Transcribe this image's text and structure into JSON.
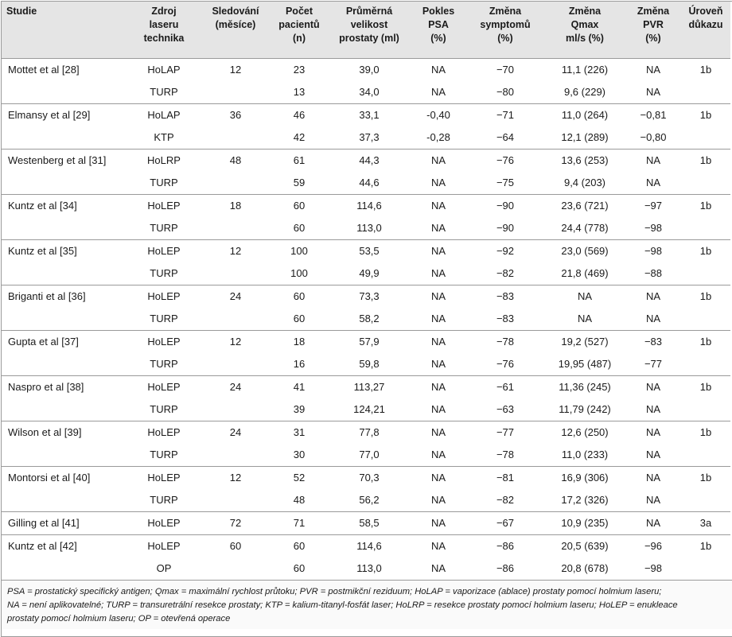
{
  "table": {
    "headers": [
      "Studie",
      "Zdroj\nlaseru\ntechnika",
      "Sledování\n(měsíce)",
      "Počet\npacientů\n(n)",
      "Průměrná\nvelikost\nprostaty (ml)",
      "Pokles\nPSA\n(%)",
      "Změna\nsymptomů\n(%)",
      "Změna\nQmax\nml/s (%)",
      "Změna\nPVR\n(%)",
      "Úroveň\ndůkazu"
    ],
    "groups": [
      {
        "studie": "Mottet et al [28]",
        "months": "12",
        "level": "1b",
        "rows": [
          {
            "tech": "HoLAP",
            "n": "23",
            "vol": "39,0",
            "psa": "NA",
            "sym": "−70",
            "qmax": "11,1 (226)",
            "pvr": "NA"
          },
          {
            "tech": "TURP",
            "n": "13",
            "vol": "34,0",
            "psa": "NA",
            "sym": "−80",
            "qmax": "9,6 (229)",
            "pvr": "NA"
          }
        ]
      },
      {
        "studie": "Elmansy et al [29]",
        "months": "36",
        "level": "1b",
        "rows": [
          {
            "tech": "HoLAP",
            "n": "46",
            "vol": "33,1",
            "psa": "-0,40",
            "sym": "−71",
            "qmax": "11,0 (264)",
            "pvr": "−0,81"
          },
          {
            "tech": "KTP",
            "n": "42",
            "vol": "37,3",
            "psa": "-0,28",
            "sym": "−64",
            "qmax": "12,1 (289)",
            "pvr": "−0,80"
          }
        ]
      },
      {
        "studie": "Westenberg et al [31]",
        "months": "48",
        "level": "1b",
        "rows": [
          {
            "tech": "HoLRP",
            "n": "61",
            "vol": "44,3",
            "psa": "NA",
            "sym": "−76",
            "qmax": "13,6 (253)",
            "pvr": "NA"
          },
          {
            "tech": "TURP",
            "n": "59",
            "vol": "44,6",
            "psa": "NA",
            "sym": "−75",
            "qmax": "9,4 (203)",
            "pvr": "NA"
          }
        ]
      },
      {
        "studie": "Kuntz et al [34]",
        "months": "18",
        "level": "1b",
        "rows": [
          {
            "tech": "HoLEP",
            "n": "60",
            "vol": "114,6",
            "psa": "NA",
            "sym": "−90",
            "qmax": "23,6 (721)",
            "pvr": "−97"
          },
          {
            "tech": "TURP",
            "n": "60",
            "vol": "113,0",
            "psa": "NA",
            "sym": "−90",
            "qmax": "24,4 (778)",
            "pvr": "−98"
          }
        ]
      },
      {
        "studie": "Kuntz et al [35]",
        "months": "12",
        "level": "1b",
        "rows": [
          {
            "tech": "HoLEP",
            "n": "100",
            "vol": "53,5",
            "psa": "NA",
            "sym": "−92",
            "qmax": "23,0 (569)",
            "pvr": "−98"
          },
          {
            "tech": "TURP",
            "n": "100",
            "vol": "49,9",
            "psa": "NA",
            "sym": "−82",
            "qmax": "21,8 (469)",
            "pvr": "−88"
          }
        ]
      },
      {
        "studie": "Briganti et al [36]",
        "months": "24",
        "level": "1b",
        "rows": [
          {
            "tech": "HoLEP",
            "n": "60",
            "vol": "73,3",
            "psa": "NA",
            "sym": "−83",
            "qmax": "NA",
            "pvr": "NA"
          },
          {
            "tech": "TURP",
            "n": "60",
            "vol": "58,2",
            "psa": "NA",
            "sym": "−83",
            "qmax": "NA",
            "pvr": "NA"
          }
        ]
      },
      {
        "studie": "Gupta et al [37]",
        "months": "12",
        "level": "1b",
        "rows": [
          {
            "tech": "HoLEP",
            "n": "18",
            "vol": "57,9",
            "psa": "NA",
            "sym": "−78",
            "qmax": "19,2 (527)",
            "pvr": "−83"
          },
          {
            "tech": "TURP",
            "n": "16",
            "vol": "59,8",
            "psa": "NA",
            "sym": "−76",
            "qmax": "19,95 (487)",
            "pvr": "−77"
          }
        ]
      },
      {
        "studie": "Naspro et al [38]",
        "months": "24",
        "level": "1b",
        "rows": [
          {
            "tech": "HoLEP",
            "n": "41",
            "vol": "113,27",
            "psa": "NA",
            "sym": "−61",
            "qmax": "11,36 (245)",
            "pvr": "NA"
          },
          {
            "tech": "TURP",
            "n": "39",
            "vol": "124,21",
            "psa": "NA",
            "sym": "−63",
            "qmax": "11,79 (242)",
            "pvr": "NA"
          }
        ]
      },
      {
        "studie": "Wilson et al [39]",
        "months": "24",
        "level": "1b",
        "rows": [
          {
            "tech": "HoLEP",
            "n": "31",
            "vol": "77,8",
            "psa": "NA",
            "sym": "−77",
            "qmax": "12,6 (250)",
            "pvr": "NA"
          },
          {
            "tech": "TURP",
            "n": "30",
            "vol": "77,0",
            "psa": "NA",
            "sym": "−78",
            "qmax": "11,0 (233)",
            "pvr": "NA"
          }
        ]
      },
      {
        "studie": "Montorsi et al [40]",
        "months": "12",
        "level": "1b",
        "rows": [
          {
            "tech": "HoLEP",
            "n": "52",
            "vol": "70,3",
            "psa": "NA",
            "sym": "−81",
            "qmax": "16,9 (306)",
            "pvr": "NA"
          },
          {
            "tech": "TURP",
            "n": "48",
            "vol": "56,2",
            "psa": "NA",
            "sym": "−82",
            "qmax": "17,2 (326)",
            "pvr": "NA"
          }
        ]
      },
      {
        "studie": "Gilling et al [41]",
        "months": "72",
        "level": "3a",
        "rows": [
          {
            "tech": "HoLEP",
            "n": "71",
            "vol": "58,5",
            "psa": "NA",
            "sym": "−67",
            "qmax": "10,9 (235)",
            "pvr": "NA"
          }
        ]
      },
      {
        "studie": "Kuntz et al [42]",
        "months": "60",
        "level": "1b",
        "rows": [
          {
            "tech": "HoLEP",
            "n": "60",
            "vol": "114,6",
            "psa": "NA",
            "sym": "−86",
            "qmax": "20,5 (639)",
            "pvr": "−96"
          },
          {
            "tech": "OP",
            "n": "60",
            "vol": "113,0",
            "psa": "NA",
            "sym": "−86",
            "qmax": "20,8 (678)",
            "pvr": "−98"
          }
        ]
      }
    ]
  },
  "footnote": {
    "line1": "PSA = prostatický specifický antigen; Qmax = maximální rychlost průtoku; PVR = postmikční reziduum; HoLAP = vaporizace (ablace) prostaty pomocí holmium laseru;",
    "line2": "NA = není aplikovatelné; TURP = transuretrální resekce prostaty; KTP = kalium-titanyl-fosfát laser; HoLRP = resekce prostaty pomocí holmium laseru; HoLEP = enukleace",
    "line3": "prostaty pomocí holmium laseru; OP = otevřená operace"
  }
}
